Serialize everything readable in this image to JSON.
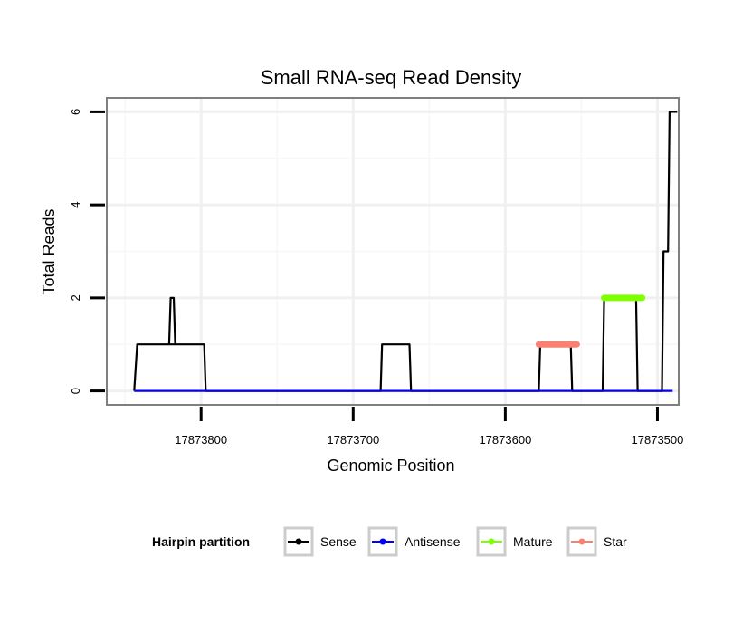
{
  "chart_data": {
    "type": "line",
    "title": "Small RNA-seq Read Density",
    "xlabel": "Genomic Position",
    "ylabel": "Total Reads",
    "x_reversed": true,
    "xlim": [
      17873862,
      17873486
    ],
    "ylim": [
      -0.3,
      6.3
    ],
    "x_ticks": [
      {
        "value": 17873800,
        "label": "17873800"
      },
      {
        "value": 17873700,
        "label": "17873700"
      },
      {
        "value": 17873600,
        "label": "17873600"
      },
      {
        "value": 17873500,
        "label": "17873500"
      }
    ],
    "y_ticks": [
      {
        "value": 0,
        "label": "0"
      },
      {
        "value": 2,
        "label": "2"
      },
      {
        "value": 4,
        "label": "4"
      },
      {
        "value": 6,
        "label": "6"
      }
    ],
    "legend": {
      "title": "Hairpin partition",
      "placement": "bottom",
      "entries": [
        {
          "name": "Sense",
          "color": "#000000"
        },
        {
          "name": "Antisense",
          "color": "#0000ff"
        },
        {
          "name": "Mature",
          "color": "#7fff00"
        },
        {
          "name": "Star",
          "color": "#fa8072"
        }
      ]
    },
    "series": [
      {
        "name": "Sense",
        "color": "#000000",
        "x": [
          17873844,
          17873842,
          17873821,
          17873820,
          17873818,
          17873817,
          17873821,
          17873820,
          17873798,
          17873797,
          17873682,
          17873681,
          17873663,
          17873662,
          17873578,
          17873577,
          17873557,
          17873556,
          17873536,
          17873535,
          17873514,
          17873513,
          17873497,
          17873496,
          17873493,
          17873492,
          17873487
        ],
        "y": [
          0,
          1,
          1,
          2,
          2,
          1,
          1,
          1,
          1,
          0,
          0,
          1,
          1,
          0,
          0,
          1,
          1,
          0,
          0,
          2,
          2,
          0,
          0,
          3,
          3,
          6,
          6
        ]
      },
      {
        "name": "Antisense",
        "color": "#0000ff",
        "x": [
          17873844,
          17873490
        ],
        "y": [
          0,
          0
        ]
      },
      {
        "name": "Mature",
        "color": "#7fff00",
        "x": [
          17873535,
          17873510
        ],
        "y": [
          2,
          2
        ]
      },
      {
        "name": "Star",
        "color": "#fa8072",
        "x": [
          17873578,
          17873553
        ],
        "y": [
          1,
          1
        ]
      }
    ]
  }
}
